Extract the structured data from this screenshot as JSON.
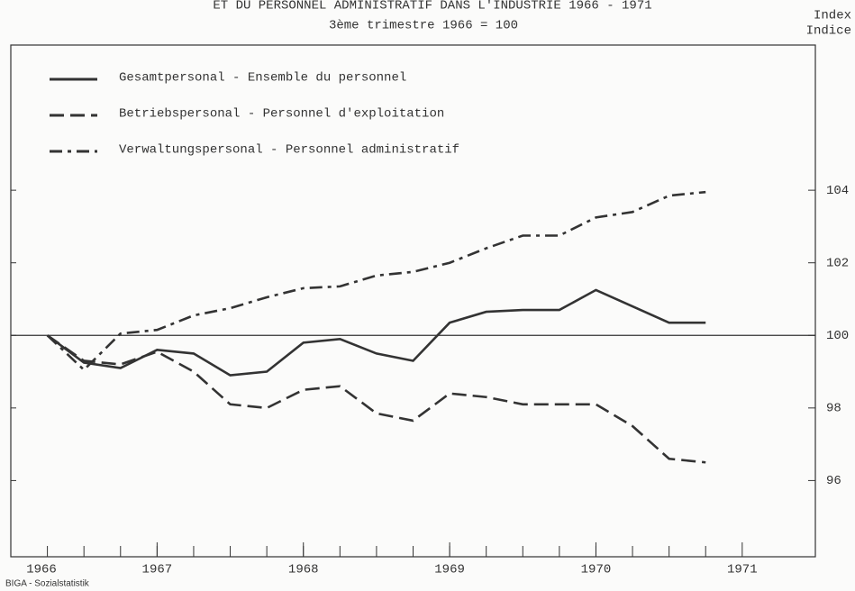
{
  "chart_data": {
    "type": "line",
    "title": "ET DU PERSONNEL ADMINISTRATIF DANS L'INDUSTRIE  1966 - 1971",
    "subtitle": "3ème trimestre 1966 = 100",
    "y_label": [
      "Index",
      "Indice"
    ],
    "source": "BIGA - Sozialstatistik",
    "x": [
      1966.25,
      1966.5,
      1966.75,
      1967,
      1967.25,
      1967.5,
      1967.75,
      1968,
      1968.25,
      1968.5,
      1968.75,
      1969,
      1969.25,
      1969.5,
      1969.75,
      1970,
      1970.25,
      1970.5,
      1970.75
    ],
    "xlim": [
      1966,
      1971.5
    ],
    "xticks": [
      1966,
      1967,
      1968,
      1969,
      1970,
      1971
    ],
    "ylim": [
      93.9,
      108
    ],
    "yticks": [
      96,
      98,
      100,
      102,
      104
    ],
    "reference_line": 100,
    "series": [
      {
        "name": "Gesamtpersonal - Ensemble du personnel",
        "color": "#333333",
        "dash": "solid",
        "values": [
          100,
          99.25,
          99.1,
          99.6,
          99.5,
          98.9,
          99.0,
          99.8,
          99.9,
          99.5,
          99.3,
          100.35,
          100.65,
          100.7,
          100.7,
          101.25,
          100.8,
          100.35,
          100.35
        ]
      },
      {
        "name": "Betriebspersonal - Personnel d'exploitation",
        "color": "#333333",
        "dash": "dashed",
        "values": [
          100,
          99.3,
          99.2,
          99.55,
          99.0,
          98.1,
          98.0,
          98.5,
          98.6,
          97.85,
          97.65,
          98.4,
          98.3,
          98.1,
          98.1,
          98.1,
          97.5,
          96.6,
          96.5
        ]
      },
      {
        "name": "Verwaltungspersonal - Personnel administratif",
        "color": "#333333",
        "dash": "dashdot",
        "values": [
          100,
          99.05,
          100.05,
          100.15,
          100.55,
          100.75,
          101.05,
          101.3,
          101.35,
          101.65,
          101.75,
          102.0,
          102.4,
          102.75,
          102.75,
          103.25,
          103.4,
          103.85,
          103.95
        ]
      }
    ]
  }
}
